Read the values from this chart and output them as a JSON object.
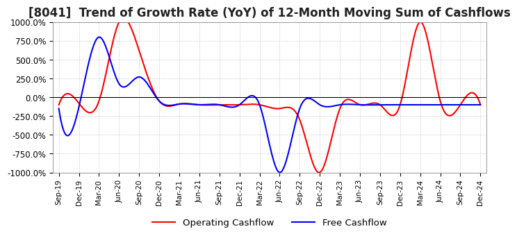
{
  "title": "[8041]  Trend of Growth Rate (YoY) of 12-Month Moving Sum of Cashflows",
  "ylim": [
    -1000,
    1000
  ],
  "yticks": [
    1000,
    750,
    500,
    250,
    0,
    -250,
    -500,
    -750,
    -1000
  ],
  "ytick_labels": [
    "1000.0%",
    "750.0%",
    "500.0%",
    "250.0%",
    "0.0%",
    "-250.0%",
    "-500.0%",
    "-750.0%",
    "-1000.0%"
  ],
  "x_labels": [
    "Sep-19",
    "Dec-19",
    "Mar-20",
    "Jun-20",
    "Sep-20",
    "Dec-20",
    "Mar-21",
    "Jun-21",
    "Sep-21",
    "Dec-21",
    "Mar-22",
    "Jun-22",
    "Sep-22",
    "Dec-22",
    "Mar-23",
    "Jun-23",
    "Sep-23",
    "Dec-23",
    "Mar-24",
    "Jun-24",
    "Sep-24",
    "Dec-24"
  ],
  "operating_color": "#ff0000",
  "free_color": "#0000ff",
  "background_color": "#ffffff",
  "grid_color": "#aaaaaa",
  "title_fontsize": 12,
  "legend_labels": [
    "Operating Cashflow",
    "Free Cashflow"
  ],
  "operating_cashflow": [
    -100,
    -80,
    -50,
    1000,
    620,
    -50,
    -90,
    -100,
    -100,
    -100,
    -100,
    -150,
    -300,
    -1000,
    -150,
    -100,
    -100,
    -100,
    1000,
    -50,
    -100,
    -100
  ],
  "free_cashflow": [
    -150,
    -130,
    800,
    180,
    270,
    -50,
    -90,
    -100,
    -100,
    -100,
    -100,
    -1000,
    -150,
    -100,
    -100,
    -100,
    -100,
    -100,
    -100,
    -100,
    -100,
    -100
  ]
}
